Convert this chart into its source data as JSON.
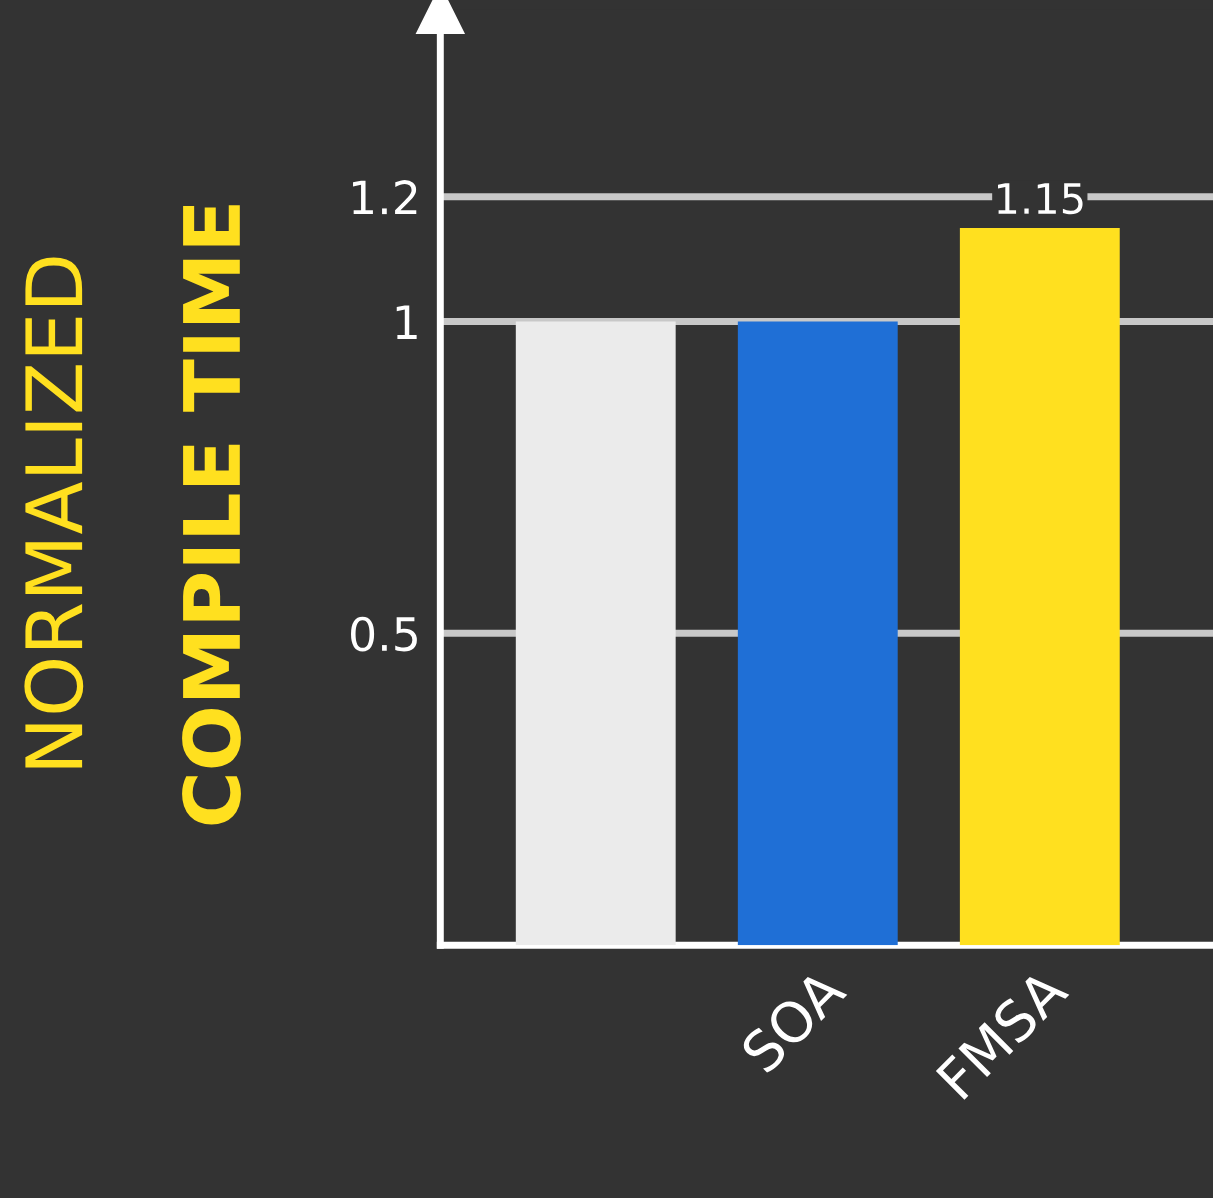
{
  "chart_data": {
    "type": "bar",
    "ylabel": "NORMALIZED\nCOMPILE TIME",
    "categories": [
      null,
      "SOA",
      "FMSA"
    ],
    "values": [
      1.0,
      1.0,
      1.15
    ],
    "colors": [
      "#ebebeb",
      "#1f6fd6",
      "#ffe01f"
    ],
    "value_labels": [
      null,
      null,
      "1.15"
    ],
    "ylim": [
      0,
      1.5
    ],
    "yticks": [
      0.5,
      1,
      1.2
    ],
    "grid": "y",
    "legend": false
  }
}
